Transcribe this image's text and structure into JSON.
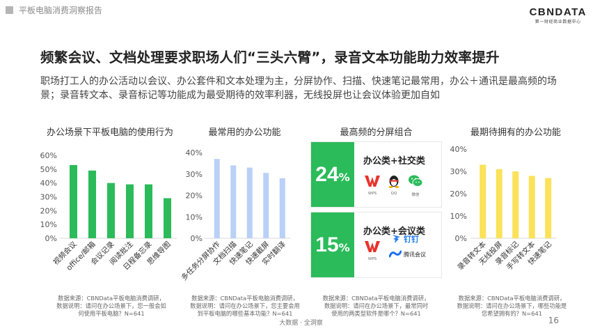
{
  "header": {
    "title": "平板电脑消费洞察报告"
  },
  "logo": {
    "main": "CBNDATA",
    "sub": "第一财经商业数据中心"
  },
  "headline": "频繁会议、文档处理要求职场人们“三头六臂”，录音文本功能助力效率提升",
  "intro": "职场打工人的办公活动以会议、办公套件和文本处理为主，分屏协作、扫描、快速笔记最常用，办公＋通讯是最高频的场景；录音转文本、录音标记等功能成为最受期待的效率利器，无线投屏也让会议体验更加自如",
  "colors": {
    "green": "#2bbb5a",
    "blue": "#b9d0f7",
    "yellow": "#fae25a"
  },
  "chart_data": [
    {
      "type": "bar",
      "title": "办公场景下平板电脑的使用行为",
      "categories": [
        "视频会议",
        "office/邮箱",
        "会议记录",
        "阅读批注",
        "日程备忘录",
        "思维导图"
      ],
      "values": [
        53,
        49,
        40,
        39,
        39,
        29
      ],
      "ylim": [
        0,
        60
      ],
      "yticks": [
        "0%",
        "10%",
        "20%",
        "30%",
        "40%",
        "50%",
        "60%"
      ],
      "color": "#2bbb5a"
    },
    {
      "type": "bar",
      "title": "最常用的办公功能",
      "categories": [
        "多任务分屏协作",
        "文档扫描",
        "快速笔记",
        "快速截屏",
        "实时翻译"
      ],
      "values": [
        37,
        34,
        33,
        30.5,
        28
      ],
      "ylim": [
        0,
        40
      ],
      "yticks": [
        "0%",
        "10%",
        "20%",
        "30%",
        "40%"
      ],
      "color": "#b9d0f7"
    },
    {
      "type": "table",
      "title": "最高频的分屏组合",
      "rows": [
        {
          "percent": "24",
          "unit": "%",
          "label": "办公类+社交类",
          "apps": [
            "WPS",
            "QQ",
            "微信"
          ]
        },
        {
          "percent": "15",
          "unit": "%",
          "label": "办公类+会议类",
          "apps": [
            "WPS",
            "钉钉",
            "腾讯会议"
          ]
        }
      ]
    },
    {
      "type": "bar",
      "title": "最期待拥有的办公功能",
      "categories": [
        "录音转文本",
        "无线投屏",
        "录音标记",
        "手写转文本",
        "快速笔记"
      ],
      "values": [
        33,
        31,
        30,
        28,
        27
      ],
      "ylim": [
        0,
        40
      ],
      "yticks": [
        "0%",
        "10%",
        "20%",
        "30%",
        "40%"
      ],
      "color": "#fae25a"
    }
  ],
  "sources": [
    [
      "数据来源：CBNData平板电脑消费调研，",
      "数据说明：请问在办公场景下，您一般会如",
      "何使用平板电脑？N=641"
    ],
    [
      "数据来源：CBNData平板电脑消费调研，",
      "数据说明：请问在办公场景下，您主要会用",
      "到平板电脑的哪些基本功能？N=641"
    ],
    [
      "数据来源：CBNData平板电脑消费调研，",
      "数据说明：请问在办公场景下，最常同时",
      "使用的两类型软件是哪个？N=641"
    ],
    [
      "数据来源：CBNData平板电脑消费调研，",
      "数据说明：请问在办公场景下，哪些功能是",
      "您希望拥有的？N=641"
    ]
  ],
  "footer": "大数据 · 全洞察",
  "page_number": "16"
}
